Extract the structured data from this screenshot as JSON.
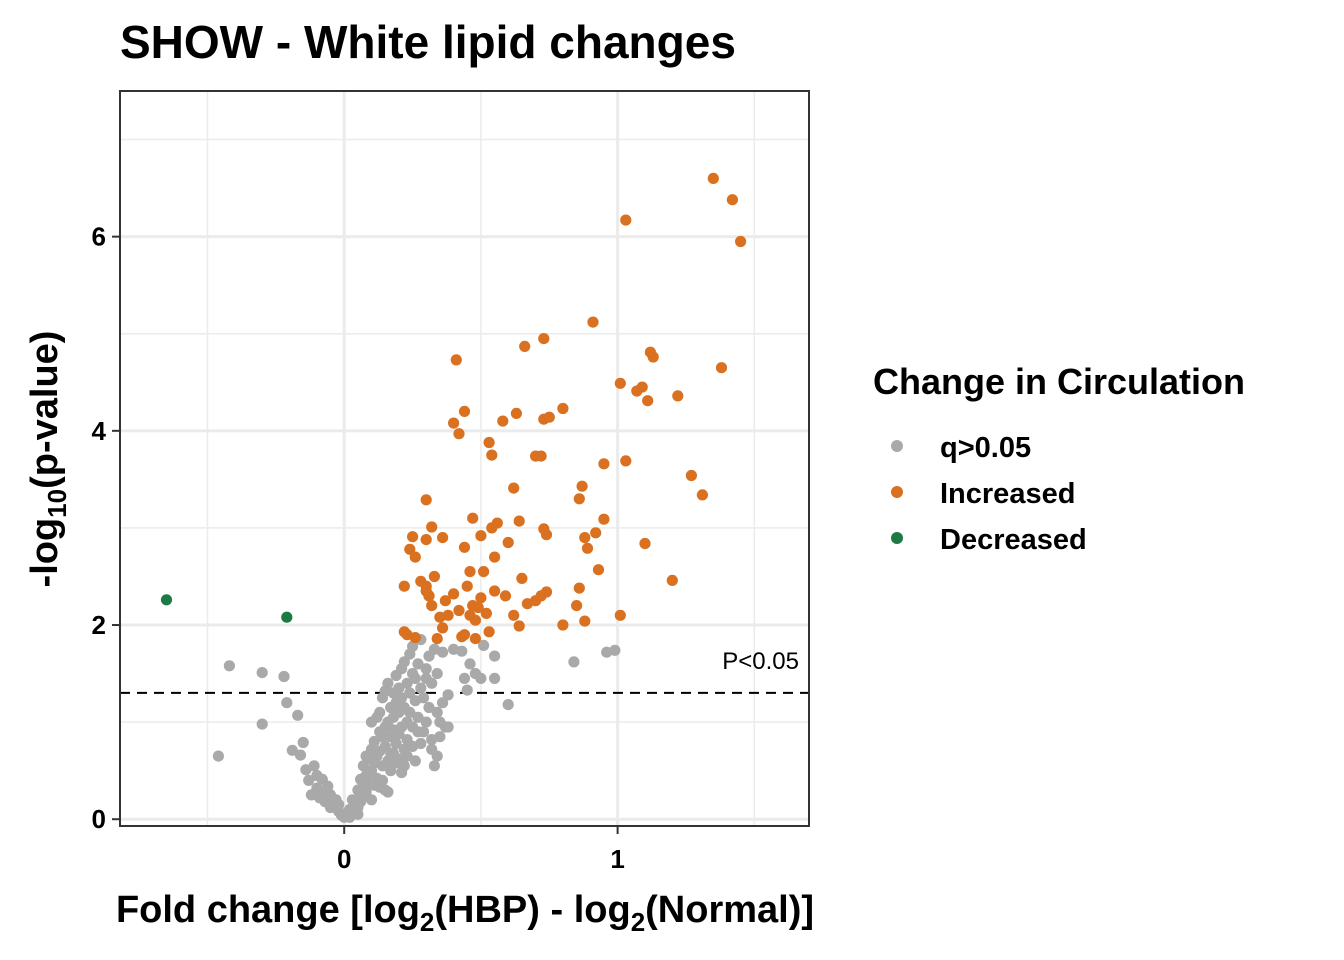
{
  "chart_data": {
    "type": "scatter",
    "title": "SHOW - White lipid changes",
    "xlabel": {
      "pre": "Fold change [log",
      "sub1": "2",
      "mid": "(HBP) - log",
      "sub2": "2",
      "post": "(Normal)]"
    },
    "ylabel": {
      "pre": "-log",
      "sub": "10",
      "post": "(p-value)"
    },
    "xlim": [
      -0.82,
      1.7
    ],
    "ylim": [
      -0.07,
      7.5
    ],
    "x_ticks": [
      {
        "value": 0,
        "label": "0"
      },
      {
        "value": 1,
        "label": "1"
      }
    ],
    "y_ticks": [
      {
        "value": 0,
        "label": "0"
      },
      {
        "value": 2,
        "label": "2"
      },
      {
        "value": 4,
        "label": "4"
      },
      {
        "value": 6,
        "label": "6"
      }
    ],
    "grid": true,
    "legend_position": "right",
    "threshold": {
      "y": 1.301,
      "label": "P<0.05"
    },
    "legend": {
      "title": "Change in Circulation"
    },
    "colors": {
      "q>0.05": "#A9A9A9",
      "Increased": "#D97120",
      "Decreased": "#1E7A45"
    },
    "series": [
      {
        "name": "q>0.05",
        "color": "#A9A9A9",
        "points": [
          [
            -0.46,
            0.65
          ],
          [
            -0.42,
            1.58
          ],
          [
            -0.3,
            1.51
          ],
          [
            -0.3,
            0.98
          ],
          [
            -0.22,
            1.47
          ],
          [
            -0.21,
            1.2
          ],
          [
            -0.19,
            0.71
          ],
          [
            -0.17,
            1.07
          ],
          [
            -0.16,
            0.66
          ],
          [
            -0.15,
            0.79
          ],
          [
            -0.14,
            0.51
          ],
          [
            -0.13,
            0.4
          ],
          [
            -0.12,
            0.25
          ],
          [
            -0.11,
            0.55
          ],
          [
            -0.1,
            0.45
          ],
          [
            -0.1,
            0.32
          ],
          [
            -0.09,
            0.22
          ],
          [
            -0.08,
            0.41
          ],
          [
            -0.07,
            0.29
          ],
          [
            -0.07,
            0.18
          ],
          [
            -0.06,
            0.34
          ],
          [
            -0.05,
            0.24
          ],
          [
            -0.05,
            0.12
          ],
          [
            -0.04,
            0.15
          ],
          [
            -0.03,
            0.2
          ],
          [
            -0.02,
            0.08
          ],
          [
            -0.01,
            0.04
          ],
          [
            0.0,
            0.02
          ],
          [
            0.01,
            0.06
          ],
          [
            0.02,
            0.1
          ],
          [
            0.03,
            0.09
          ],
          [
            0.03,
            0.2
          ],
          [
            0.04,
            0.15
          ],
          [
            0.05,
            0.3
          ],
          [
            0.05,
            0.12
          ],
          [
            0.06,
            0.22
          ],
          [
            0.06,
            0.41
          ],
          [
            0.07,
            0.35
          ],
          [
            0.07,
            0.55
          ],
          [
            0.08,
            0.28
          ],
          [
            0.08,
            0.45
          ],
          [
            0.09,
            0.62
          ],
          [
            0.09,
            0.38
          ],
          [
            0.1,
            0.5
          ],
          [
            0.1,
            0.72
          ],
          [
            0.1,
            1.0
          ],
          [
            0.11,
            0.58
          ],
          [
            0.11,
            0.8
          ],
          [
            0.12,
            0.42
          ],
          [
            0.12,
            0.65
          ],
          [
            0.12,
            1.05
          ],
          [
            0.13,
            0.7
          ],
          [
            0.13,
            0.9
          ],
          [
            0.13,
            1.1
          ],
          [
            0.14,
            0.55
          ],
          [
            0.14,
            0.85
          ],
          [
            0.14,
            1.25
          ],
          [
            0.15,
            0.95
          ],
          [
            0.15,
            0.75
          ],
          [
            0.15,
            1.32
          ],
          [
            0.16,
            0.6
          ],
          [
            0.16,
            1.0
          ],
          [
            0.16,
            1.4
          ],
          [
            0.17,
            0.85
          ],
          [
            0.17,
            1.15
          ],
          [
            0.17,
            0.68
          ],
          [
            0.18,
            1.05
          ],
          [
            0.18,
            0.92
          ],
          [
            0.18,
            1.3
          ],
          [
            0.19,
            0.78
          ],
          [
            0.19,
            1.2
          ],
          [
            0.19,
            1.48
          ],
          [
            0.2,
            0.88
          ],
          [
            0.2,
            1.1
          ],
          [
            0.2,
            1.35
          ],
          [
            0.21,
            0.95
          ],
          [
            0.21,
            1.55
          ],
          [
            0.21,
            1.25
          ],
          [
            0.22,
            0.72
          ],
          [
            0.22,
            1.15
          ],
          [
            0.22,
            1.62
          ],
          [
            0.23,
            1.0
          ],
          [
            0.23,
            1.4
          ],
          [
            0.23,
            0.82
          ],
          [
            0.24,
            1.3
          ],
          [
            0.24,
            1.7
          ],
          [
            0.24,
            1.1
          ],
          [
            0.25,
            0.95
          ],
          [
            0.25,
            1.5
          ],
          [
            0.25,
            1.78
          ],
          [
            0.26,
            1.22
          ],
          [
            0.26,
            1.45
          ],
          [
            0.27,
            1.05
          ],
          [
            0.27,
            1.6
          ],
          [
            0.28,
            1.35
          ],
          [
            0.28,
            1.85
          ],
          [
            0.29,
            0.9
          ],
          [
            0.29,
            1.25
          ],
          [
            0.3,
            1.55
          ],
          [
            0.3,
            1.45
          ],
          [
            0.31,
            1.68
          ],
          [
            0.31,
            1.15
          ],
          [
            0.32,
            1.4
          ],
          [
            0.32,
            0.82
          ],
          [
            0.33,
            1.75
          ],
          [
            0.34,
            1.5
          ],
          [
            0.34,
            1.1
          ],
          [
            0.35,
            1.0
          ],
          [
            0.36,
            1.72
          ],
          [
            0.37,
            0.95
          ],
          [
            0.38,
            1.28
          ],
          [
            0.4,
            1.75
          ],
          [
            0.43,
            1.73
          ],
          [
            0.44,
            1.45
          ],
          [
            0.45,
            1.33
          ],
          [
            0.46,
            1.6
          ],
          [
            0.48,
            1.5
          ],
          [
            0.5,
            1.45
          ],
          [
            0.51,
            1.79
          ],
          [
            0.55,
            1.68
          ],
          [
            0.55,
            1.45
          ],
          [
            0.6,
            1.18
          ],
          [
            0.84,
            1.62
          ],
          [
            0.96,
            1.72
          ],
          [
            0.99,
            1.74
          ],
          [
            0.0,
            0.05
          ],
          [
            0.02,
            0.02
          ],
          [
            -0.02,
            0.15
          ],
          [
            0.06,
            0.18
          ],
          [
            0.08,
            0.65
          ],
          [
            0.11,
            0.35
          ],
          [
            0.14,
            0.4
          ],
          [
            0.15,
            0.3
          ],
          [
            0.17,
            0.5
          ],
          [
            0.19,
            0.58
          ],
          [
            0.2,
            0.62
          ],
          [
            0.21,
            0.48
          ],
          [
            0.22,
            0.55
          ],
          [
            0.23,
            0.65
          ],
          [
            0.25,
            0.75
          ],
          [
            0.26,
            0.6
          ],
          [
            0.28,
            0.78
          ],
          [
            0.32,
            0.72
          ],
          [
            0.33,
            0.55
          ],
          [
            0.34,
            0.65
          ],
          [
            0.35,
            0.85
          ],
          [
            0.1,
            0.2
          ],
          [
            0.13,
            0.33
          ],
          [
            0.16,
            0.28
          ],
          [
            0.3,
            1.0
          ],
          [
            0.27,
            0.9
          ],
          [
            0.18,
            0.68
          ],
          [
            0.05,
            0.05
          ],
          [
            -0.05,
            0.25
          ],
          [
            0.36,
            1.2
          ],
          [
            0.38,
            0.95
          ]
        ]
      },
      {
        "name": "Increased",
        "color": "#D97120",
        "points": [
          [
            1.35,
            6.6
          ],
          [
            1.42,
            6.38
          ],
          [
            1.45,
            5.95
          ],
          [
            1.03,
            6.17
          ],
          [
            0.91,
            5.12
          ],
          [
            0.66,
            4.87
          ],
          [
            0.73,
            4.95
          ],
          [
            0.41,
            4.73
          ],
          [
            1.12,
            4.81
          ],
          [
            1.13,
            4.76
          ],
          [
            1.38,
            4.65
          ],
          [
            1.01,
            4.49
          ],
          [
            1.07,
            4.41
          ],
          [
            1.09,
            4.45
          ],
          [
            1.11,
            4.31
          ],
          [
            1.22,
            4.36
          ],
          [
            0.44,
            4.2
          ],
          [
            0.4,
            4.08
          ],
          [
            0.42,
            3.97
          ],
          [
            0.58,
            4.1
          ],
          [
            0.63,
            4.18
          ],
          [
            0.73,
            4.12
          ],
          [
            0.75,
            4.14
          ],
          [
            0.8,
            4.23
          ],
          [
            0.53,
            3.88
          ],
          [
            0.54,
            3.75
          ],
          [
            0.7,
            3.74
          ],
          [
            0.72,
            3.74
          ],
          [
            0.95,
            3.66
          ],
          [
            1.03,
            3.69
          ],
          [
            1.27,
            3.54
          ],
          [
            1.31,
            3.34
          ],
          [
            0.62,
            3.41
          ],
          [
            0.87,
            3.43
          ],
          [
            0.3,
            3.29
          ],
          [
            0.86,
            3.3
          ],
          [
            0.32,
            3.01
          ],
          [
            0.47,
            3.1
          ],
          [
            0.54,
            3.0
          ],
          [
            0.56,
            3.05
          ],
          [
            0.64,
            3.07
          ],
          [
            0.73,
            2.99
          ],
          [
            0.74,
            2.93
          ],
          [
            0.92,
            2.95
          ],
          [
            0.95,
            3.09
          ],
          [
            0.88,
            2.9
          ],
          [
            0.86,
            2.38
          ],
          [
            1.1,
            2.84
          ],
          [
            0.25,
            2.91
          ],
          [
            0.3,
            2.88
          ],
          [
            0.36,
            2.9
          ],
          [
            0.44,
            2.8
          ],
          [
            0.5,
            2.92
          ],
          [
            0.6,
            2.85
          ],
          [
            0.24,
            2.78
          ],
          [
            0.26,
            2.7
          ],
          [
            0.46,
            2.55
          ],
          [
            0.55,
            2.7
          ],
          [
            0.65,
            2.48
          ],
          [
            0.89,
            2.79
          ],
          [
            0.93,
            2.57
          ],
          [
            1.2,
            2.46
          ],
          [
            0.22,
            2.4
          ],
          [
            0.28,
            2.45
          ],
          [
            0.3,
            2.4
          ],
          [
            0.31,
            2.3
          ],
          [
            0.32,
            2.2
          ],
          [
            0.33,
            2.5
          ],
          [
            0.37,
            2.25
          ],
          [
            0.4,
            2.32
          ],
          [
            0.42,
            2.15
          ],
          [
            0.45,
            2.4
          ],
          [
            0.47,
            2.2
          ],
          [
            0.48,
            2.05
          ],
          [
            0.5,
            2.28
          ],
          [
            0.52,
            2.12
          ],
          [
            0.55,
            2.35
          ],
          [
            0.62,
            2.1
          ],
          [
            0.67,
            2.22
          ],
          [
            0.7,
            2.25
          ],
          [
            0.72,
            2.3
          ],
          [
            0.74,
            2.34
          ],
          [
            0.85,
            2.2
          ],
          [
            0.31,
            2.3
          ],
          [
            0.35,
            2.08
          ],
          [
            0.36,
            1.97
          ],
          [
            0.43,
            1.88
          ],
          [
            0.44,
            1.9
          ],
          [
            0.48,
            1.86
          ],
          [
            0.53,
            1.93
          ],
          [
            0.64,
            1.99
          ],
          [
            0.8,
            2.0
          ],
          [
            0.88,
            2.04
          ],
          [
            1.01,
            2.1
          ],
          [
            0.22,
            1.93
          ],
          [
            0.23,
            1.9
          ],
          [
            0.26,
            1.87
          ],
          [
            0.34,
            1.86
          ],
          [
            0.46,
            2.1
          ],
          [
            0.49,
            2.18
          ],
          [
            0.51,
            2.55
          ],
          [
            0.59,
            2.3
          ],
          [
            0.3,
            2.35
          ],
          [
            0.38,
            2.1
          ]
        ]
      },
      {
        "name": "Decreased",
        "color": "#1E7A45",
        "points": [
          [
            -0.65,
            2.26
          ],
          [
            -0.21,
            2.08
          ]
        ]
      }
    ]
  }
}
